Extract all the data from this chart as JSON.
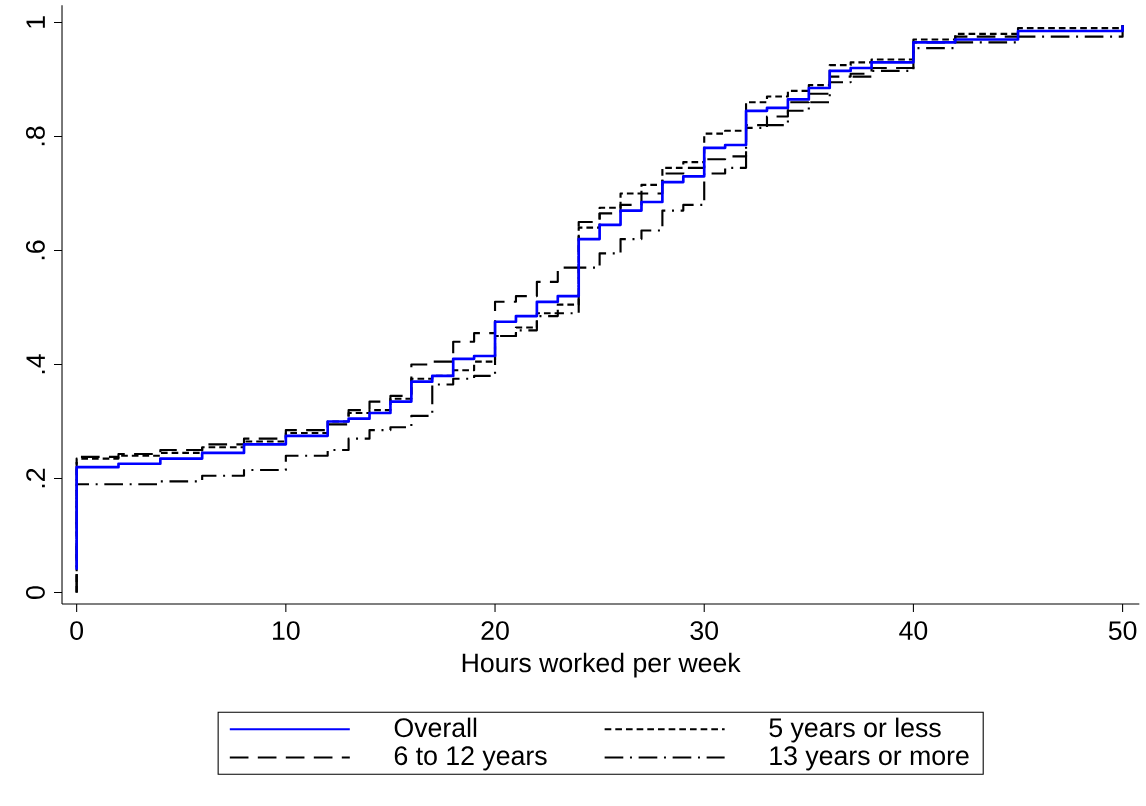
{
  "chart_data": {
    "type": "step",
    "xlabel": "Hours worked per week",
    "x": [
      0,
      0,
      2,
      4,
      6,
      8,
      10,
      12,
      13,
      14,
      15,
      16,
      17,
      18,
      19,
      20,
      21,
      22,
      23,
      24,
      25,
      26,
      27,
      28,
      29,
      30,
      31,
      32,
      33,
      34,
      35,
      36,
      37,
      38,
      40,
      42,
      45,
      50
    ],
    "series": [
      {
        "name": "Overall",
        "color": "#0000ff",
        "line_style": "solid",
        "values": [
          0.04,
          0.22,
          0.226,
          0.235,
          0.245,
          0.26,
          0.275,
          0.3,
          0.305,
          0.315,
          0.335,
          0.37,
          0.38,
          0.41,
          0.415,
          0.475,
          0.485,
          0.51,
          0.52,
          0.62,
          0.645,
          0.67,
          0.685,
          0.72,
          0.73,
          0.78,
          0.785,
          0.845,
          0.85,
          0.865,
          0.885,
          0.915,
          0.92,
          0.93,
          0.965,
          0.97,
          0.985,
          0.995
        ]
      },
      {
        "name": "5 years or less",
        "color": "#000000",
        "line_style": "dotted",
        "values": [
          0,
          0.235,
          0.24,
          0.245,
          0.255,
          0.265,
          0.28,
          0.3,
          0.315,
          0.32,
          0.34,
          0.375,
          0.38,
          0.39,
          0.405,
          0.45,
          0.465,
          0.49,
          0.505,
          0.64,
          0.675,
          0.7,
          0.715,
          0.745,
          0.755,
          0.805,
          0.81,
          0.86,
          0.87,
          0.88,
          0.89,
          0.925,
          0.93,
          0.935,
          0.97,
          0.98,
          0.99,
          0.995
        ]
      },
      {
        "name": "6 to 12 years",
        "color": "#000000",
        "line_style": "dashed",
        "values": [
          0,
          0.238,
          0.243,
          0.25,
          0.26,
          0.27,
          0.285,
          0.295,
          0.32,
          0.335,
          0.345,
          0.4,
          0.405,
          0.44,
          0.455,
          0.51,
          0.52,
          0.545,
          0.57,
          0.65,
          0.665,
          0.68,
          0.7,
          0.735,
          0.745,
          0.76,
          0.765,
          0.82,
          0.835,
          0.86,
          0.875,
          0.905,
          0.91,
          0.92,
          0.965,
          0.975,
          0.985,
          0.995
        ]
      },
      {
        "name": "13 years or more",
        "color": "#000000",
        "line_style": "dashdot",
        "values": [
          0,
          0.19,
          0.19,
          0.195,
          0.205,
          0.215,
          0.24,
          0.25,
          0.27,
          0.285,
          0.29,
          0.31,
          0.365,
          0.375,
          0.38,
          0.45,
          0.46,
          0.485,
          0.49,
          0.57,
          0.595,
          0.62,
          0.635,
          0.67,
          0.68,
          0.735,
          0.745,
          0.815,
          0.82,
          0.845,
          0.86,
          0.895,
          0.905,
          0.915,
          0.955,
          0.965,
          0.975,
          0.995
        ]
      }
    ],
    "xlim": [
      -0.7,
      50.8
    ],
    "ylim": [
      -0.02,
      1.03
    ],
    "xticks": [
      0,
      10,
      20,
      30,
      40,
      50
    ],
    "yticks": [
      0,
      {
        "value": 0.2,
        "label": ".2"
      },
      {
        "value": 0.4,
        "label": ".4"
      },
      {
        "value": 0.6,
        "label": ".6"
      },
      {
        "value": 0.8,
        "label": ".8"
      },
      1
    ],
    "grid": false,
    "legend": "bottom"
  }
}
